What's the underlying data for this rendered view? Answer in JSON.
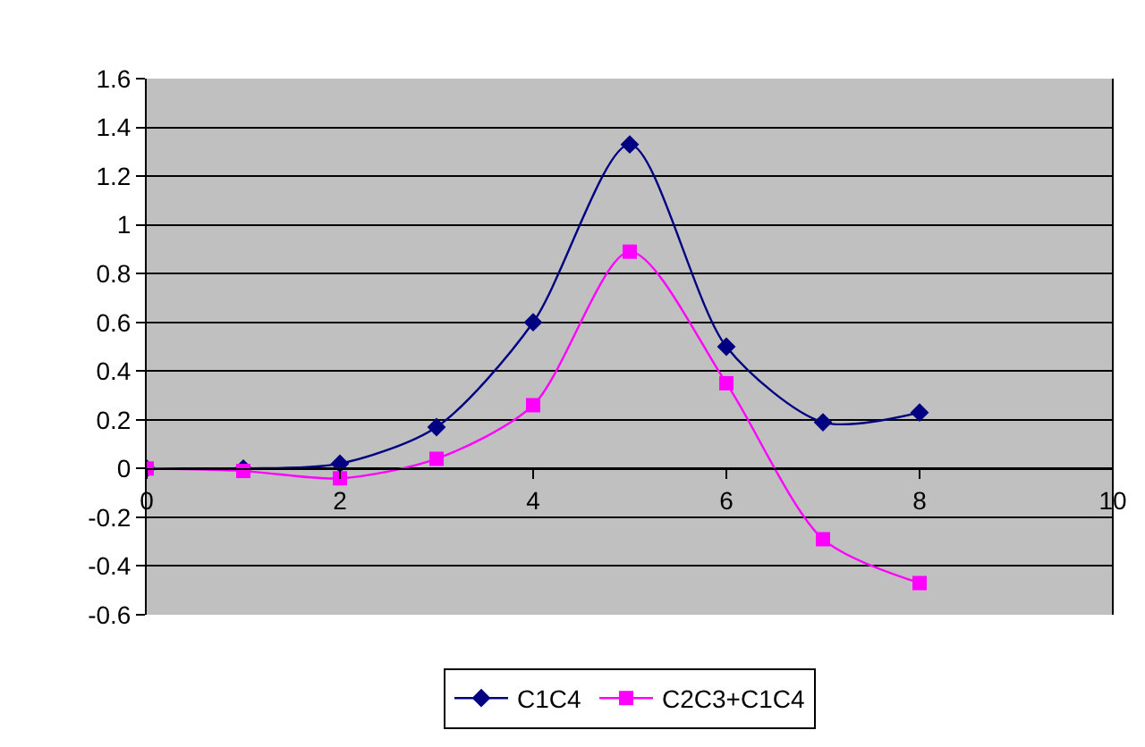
{
  "chart_data": {
    "type": "line",
    "x": [
      0,
      1,
      2,
      3,
      4,
      5,
      6,
      7,
      8
    ],
    "series": [
      {
        "name": "C1C4",
        "color": "#000080",
        "marker": "diamond",
        "values": [
          0,
          0,
          0.02,
          0.17,
          0.6,
          1.33,
          0.5,
          0.19,
          0.23
        ]
      },
      {
        "name": "C2C3+C1C4",
        "color": "#ff00ff",
        "marker": "square",
        "values": [
          0,
          -0.01,
          -0.04,
          0.04,
          0.26,
          0.89,
          0.35,
          -0.29,
          -0.47
        ]
      }
    ],
    "xlim": [
      0,
      10
    ],
    "xticks": [
      0,
      2,
      4,
      6,
      8,
      10
    ],
    "ylim": [
      -0.6,
      1.6
    ],
    "yticks": [
      -0.6,
      -0.4,
      -0.2,
      0,
      0.2,
      0.4,
      0.6,
      0.8,
      1,
      1.2,
      1.4,
      1.6
    ],
    "grid": "y",
    "legend": "bottom",
    "line_style": "solid"
  }
}
